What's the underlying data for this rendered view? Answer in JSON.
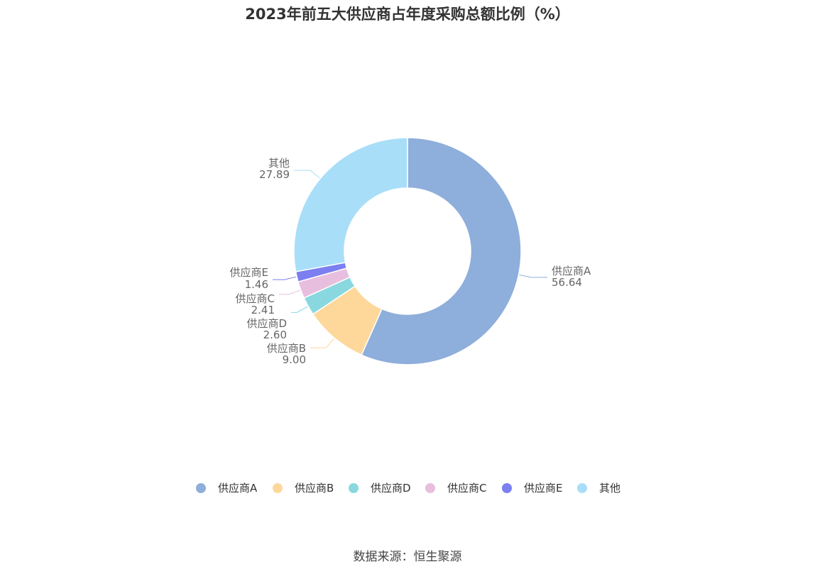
{
  "chart_data": {
    "type": "pie",
    "title": "2023年前五大供应商占年度采购总额比例（%）",
    "donut": true,
    "categories": [
      "供应商A",
      "供应商B",
      "供应商D",
      "供应商C",
      "供应商E",
      "其他"
    ],
    "values": [
      56.64,
      9.0,
      2.6,
      2.41,
      1.46,
      27.89
    ],
    "value_labels": [
      "56.64",
      "9.00",
      "2.60",
      "2.41",
      "1.46",
      "27.89"
    ],
    "colors": [
      "#8eaedb",
      "#fdd89a",
      "#89d8df",
      "#e8bedf",
      "#7b7ff0",
      "#a9def8"
    ],
    "legend_position": "bottom"
  },
  "source": "数据来源：恒生聚源"
}
